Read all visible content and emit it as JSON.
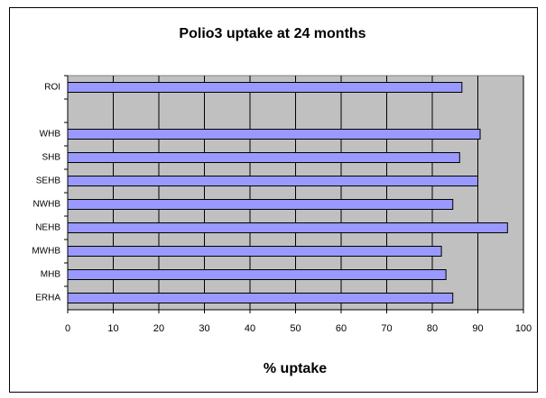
{
  "chart_data": {
    "type": "bar",
    "orientation": "horizontal",
    "title": "Polio3 uptake at 24 months",
    "x_label": "% uptake",
    "categories": [
      "ROI",
      null,
      "WHB",
      "SHB",
      "SEHB",
      "NWHB",
      "NEHB",
      "MWHB",
      "MHB",
      "ERHA"
    ],
    "values": [
      86.5,
      null,
      90.5,
      86,
      90,
      84.5,
      96.5,
      82,
      83,
      84.5
    ],
    "color": "#9999ff",
    "plot_background": "#c0c0c0",
    "xlim": [
      0,
      100
    ],
    "xticks": [
      0,
      10,
      20,
      30,
      40,
      50,
      60,
      70,
      80,
      90,
      100
    ],
    "grid": true
  }
}
